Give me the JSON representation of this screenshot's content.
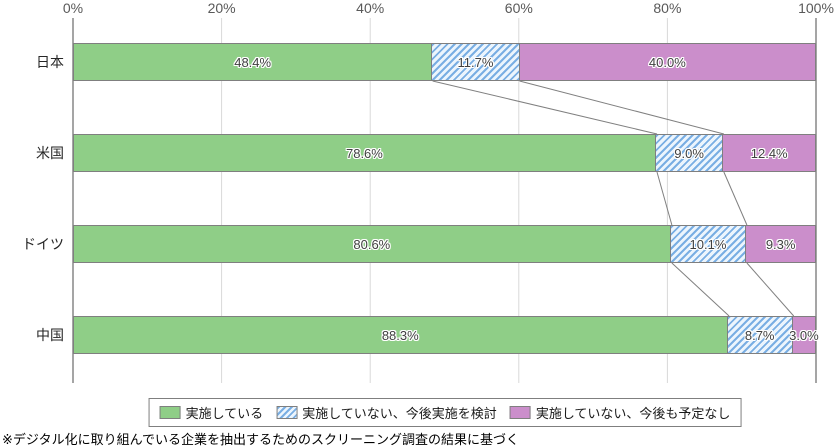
{
  "chart_data": {
    "type": "bar",
    "variant": "horizontal-stacked",
    "categories": [
      "日本",
      "米国",
      "ドイツ",
      "中国"
    ],
    "series": [
      {
        "name": "実施している",
        "values": [
          48.4,
          78.6,
          80.6,
          88.3
        ],
        "color": "#8fce87",
        "pattern": "solid"
      },
      {
        "name": "実施していない、今後実施を検討",
        "values": [
          11.7,
          9.0,
          10.1,
          8.7
        ],
        "color": "#79aee3",
        "pattern": "diagonal-stripes"
      },
      {
        "name": "実施していない、今後も予定なし",
        "values": [
          40.0,
          12.4,
          9.3,
          3.0
        ],
        "color": "#cb8ecb",
        "pattern": "solid"
      }
    ],
    "value_label_suffix": "%",
    "x_ticks": [
      "0%",
      "20%",
      "40%",
      "60%",
      "80%",
      "100%"
    ],
    "x_tick_values": [
      0,
      20,
      40,
      60,
      80,
      100
    ],
    "xlim": [
      0,
      100
    ],
    "grid": true,
    "legend_position": "bottom",
    "connector_lines": true
  },
  "footnote": "※デジタル化に取り組んでいる企業を抽出するためのスクリーニング調査の結果に基づく",
  "colors": {
    "grid_inner": "#d9d9d9",
    "grid_outer": "#9b9b9b",
    "connector": "#808080",
    "segment_border": "#7f7f7f",
    "tick_label": "#595959",
    "value_label": "#404040"
  }
}
